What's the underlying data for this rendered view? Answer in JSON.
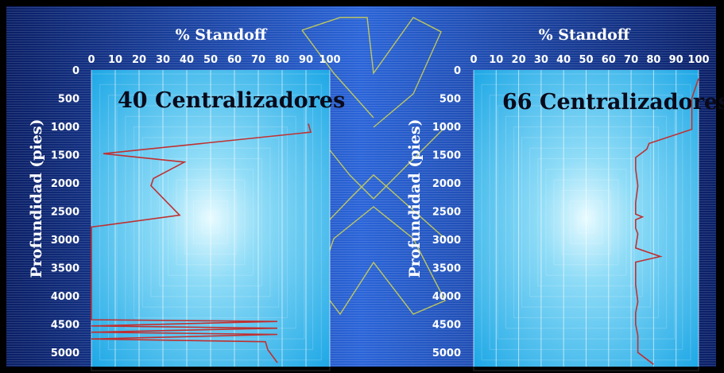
{
  "chart_data": [
    {
      "type": "line",
      "title": "40 Centralizadores",
      "xlabel": "% Standoff",
      "ylabel": "Profundidad (pies)",
      "xlim": [
        0,
        100
      ],
      "ylim": [
        0,
        5250
      ],
      "xticks": [
        0,
        10,
        20,
        30,
        40,
        50,
        60,
        70,
        80,
        90,
        100
      ],
      "yticks": [
        0,
        500,
        1000,
        1500,
        2000,
        2500,
        3000,
        3500,
        4000,
        4500,
        5000
      ],
      "series": [
        {
          "color": "#c03030",
          "x": [
            91,
            92,
            5,
            39,
            26,
            25,
            37,
            0,
            0,
            0,
            78,
            0,
            78,
            0,
            78,
            0,
            73,
            74,
            78
          ],
          "y": [
            950,
            1100,
            1480,
            1630,
            1920,
            2050,
            2570,
            2780,
            3500,
            4420,
            4450,
            4530,
            4570,
            4640,
            4680,
            4760,
            4810,
            4950,
            5180
          ]
        }
      ]
    },
    {
      "type": "line",
      "title": "66 Centralizadores",
      "xlabel": "% Standoff",
      "ylabel": "Profundidad (pies)",
      "xlim": [
        0,
        100
      ],
      "ylim": [
        0,
        5250
      ],
      "xticks": [
        0,
        10,
        20,
        30,
        40,
        50,
        60,
        70,
        80,
        90,
        100
      ],
      "yticks": [
        0,
        500,
        1000,
        1500,
        2000,
        2500,
        3000,
        3500,
        4000,
        4500,
        5000
      ],
      "series": [
        {
          "color": "#c03030",
          "x": [
            100,
            97,
            97,
            78,
            77,
            72,
            72,
            73,
            72,
            72,
            75,
            72,
            72,
            73,
            72,
            83,
            72,
            72,
            73,
            72,
            72,
            73,
            73,
            80
          ],
          "y": [
            150,
            500,
            1050,
            1300,
            1400,
            1550,
            1750,
            2050,
            2350,
            2550,
            2600,
            2650,
            2800,
            2900,
            3150,
            3300,
            3400,
            3800,
            4100,
            4300,
            4500,
            4700,
            5000,
            5210
          ]
        }
      ]
    }
  ]
}
